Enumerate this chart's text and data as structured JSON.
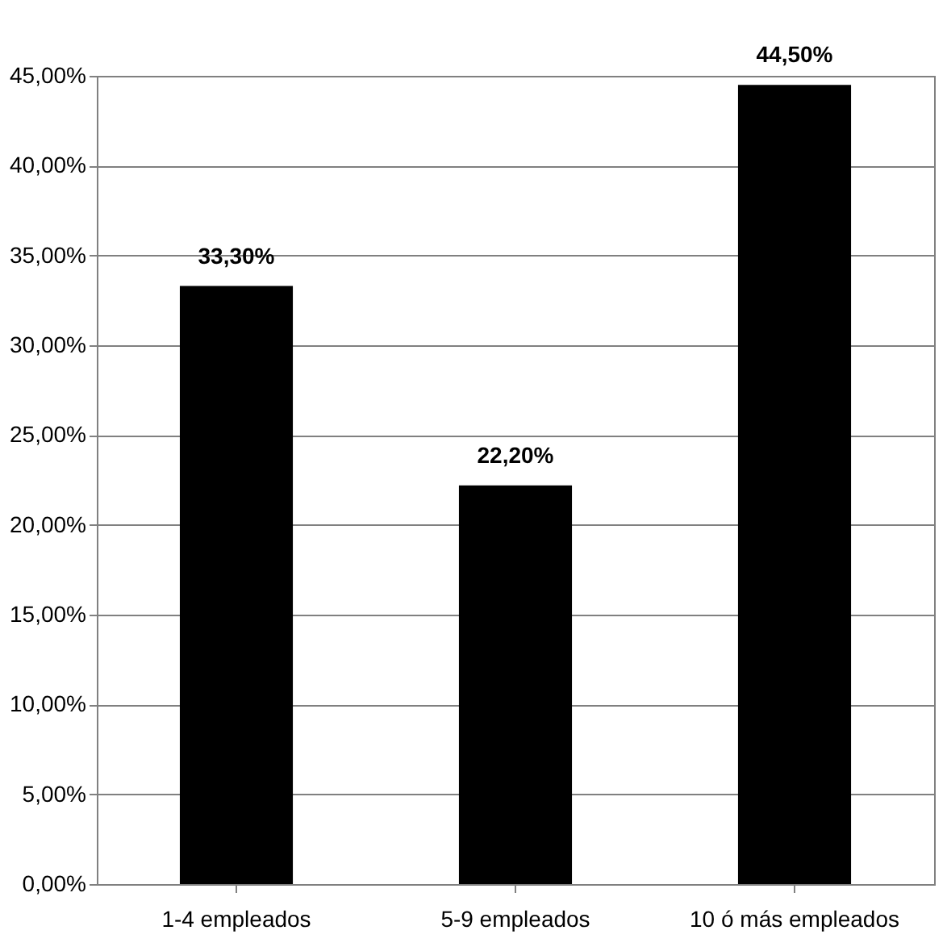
{
  "chart_data": {
    "type": "bar",
    "categories": [
      "1-4 empleados",
      "5-9 empleados",
      "10 ó más empleados"
    ],
    "values": [
      33.3,
      22.2,
      44.5
    ],
    "color": "#000000",
    "value_labels": [
      "33,30%",
      "22,20%",
      "44,50%"
    ],
    "ylim": [
      0,
      45
    ],
    "yticks": [
      {
        "value": 0,
        "label": "0,00%"
      },
      {
        "value": 5,
        "label": "5,00%"
      },
      {
        "value": 10,
        "label": "10,00%"
      },
      {
        "value": 15,
        "label": "15,00%"
      },
      {
        "value": 20,
        "label": "20,00%"
      },
      {
        "value": 25,
        "label": "25,00%"
      },
      {
        "value": 30,
        "label": "30,00%"
      },
      {
        "value": 35,
        "label": "35,00%"
      },
      {
        "value": 40,
        "label": "40,00%"
      },
      {
        "value": 45,
        "label": "45,00%"
      }
    ],
    "grid": "y"
  }
}
